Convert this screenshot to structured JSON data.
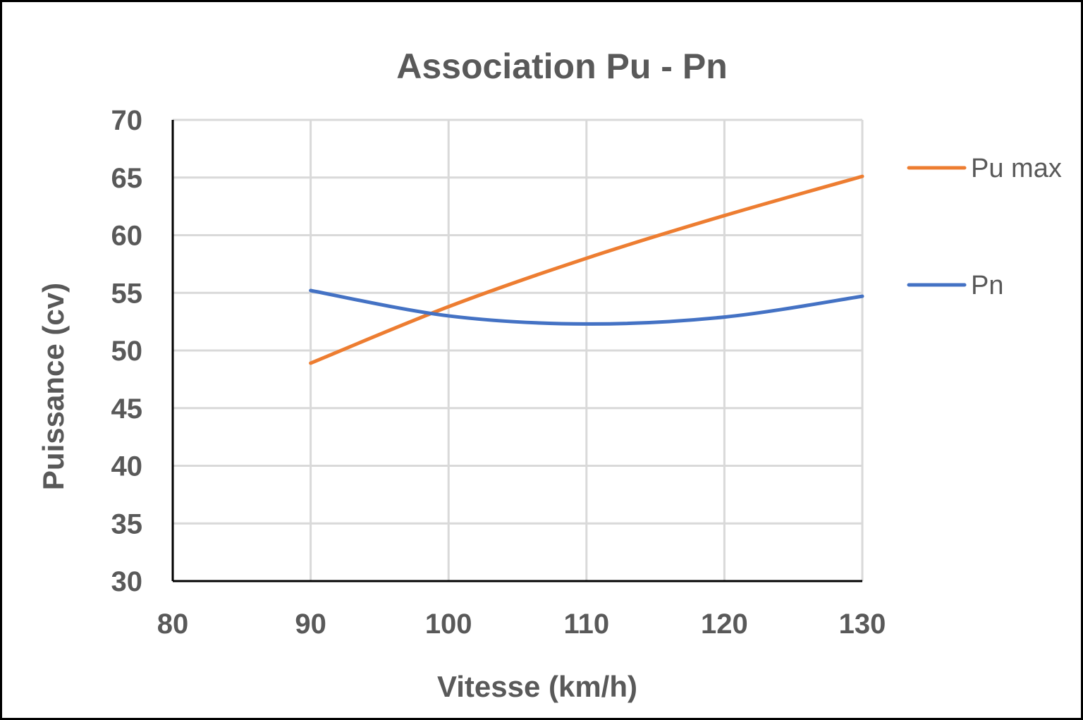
{
  "chart_data": {
    "type": "line",
    "title": "Association Pu - Pn",
    "xlabel": "Vitesse (km/h)",
    "ylabel": "Puissance  (cv)",
    "xlim": [
      80,
      130
    ],
    "ylim": [
      30,
      70
    ],
    "xticks": [
      80,
      90,
      100,
      110,
      120,
      130
    ],
    "yticks": [
      30,
      35,
      40,
      45,
      50,
      55,
      60,
      65,
      70
    ],
    "grid": true,
    "legend": "right",
    "series": [
      {
        "name": "Pu max",
        "color": "#ed7d31",
        "x": [
          90,
          100,
          110,
          120,
          130
        ],
        "y": [
          48.9,
          53.8,
          58.0,
          61.7,
          65.1
        ]
      },
      {
        "name": "Pn",
        "color": "#4472c4",
        "x": [
          90,
          100,
          110,
          120,
          130
        ],
        "y": [
          55.2,
          53.0,
          52.3,
          52.9,
          54.7
        ]
      }
    ]
  }
}
